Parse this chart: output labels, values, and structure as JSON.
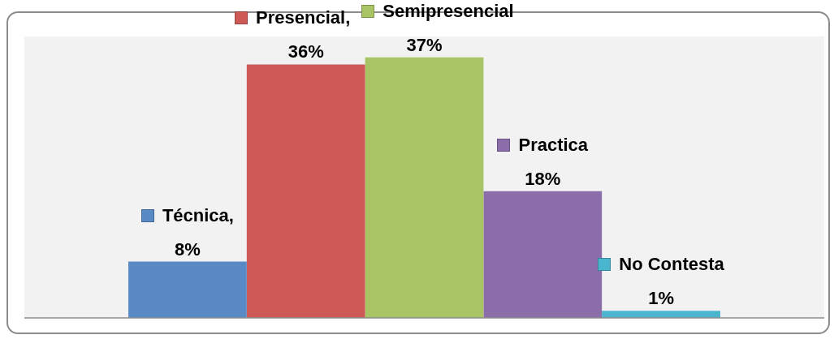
{
  "chart_data": {
    "type": "bar",
    "categories": [
      null
    ],
    "series": [
      {
        "name": "Técnica,",
        "color": "#5a8ac6",
        "values": [
          8
        ],
        "value_labels": [
          "8%"
        ]
      },
      {
        "name": "Presencial,",
        "color": "#cd5a56",
        "values": [
          36
        ],
        "value_labels": [
          "36%"
        ]
      },
      {
        "name": "Semipresencial",
        "color": "#a8c464",
        "values": [
          37
        ],
        "value_labels": [
          "37%"
        ]
      },
      {
        "name": "Practica",
        "color": "#8b6daa",
        "values": [
          18
        ],
        "value_labels": [
          "18%"
        ]
      },
      {
        "name": "No Contesta",
        "color": "#4bb5cf",
        "values": [
          1
        ],
        "value_labels": [
          "1%"
        ]
      }
    ],
    "legend": "top",
    "grid": false
  }
}
